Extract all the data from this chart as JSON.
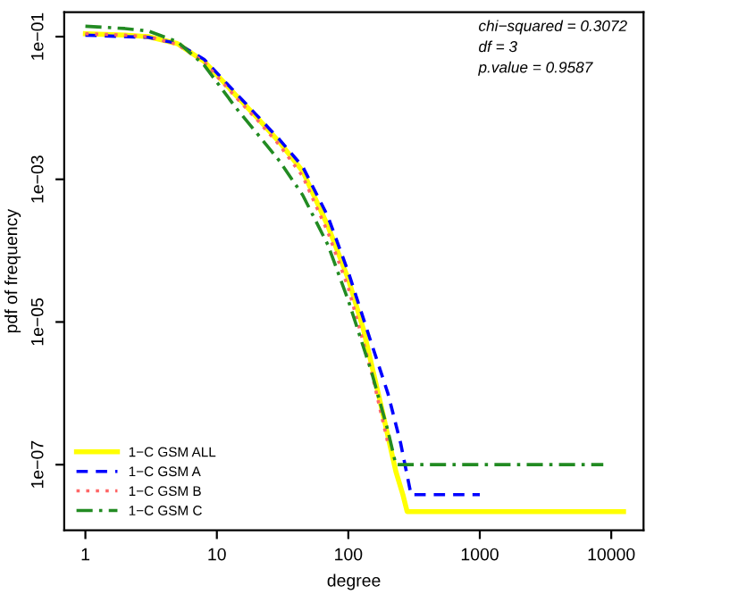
{
  "chart_data": {
    "type": "line",
    "xlabel": "degree",
    "ylabel": "pdf of frequency",
    "log": "xy",
    "xlim": [
      0.69,
      17600
    ],
    "ylim": [
      1.2e-08,
      0.22
    ],
    "xticks": [
      1,
      10,
      100,
      1000,
      10000
    ],
    "yticks": [
      {
        "value": 1e-07,
        "label": "1e−07"
      },
      {
        "value": 1e-05,
        "label": "1e−05"
      },
      {
        "value": 0.001,
        "label": "1e−03"
      },
      {
        "value": 0.1,
        "label": "1e−01"
      }
    ],
    "grid": false,
    "legend": "bottom left",
    "marker": "none",
    "annotations": [
      "chi−squared = 0.3072",
      "df = 3",
      "p.value = 0.9587"
    ],
    "series": [
      {
        "name": "1−C GSM ALL",
        "color": "#ffff00",
        "line_style": "solid",
        "x": [
          1,
          2,
          3,
          5,
          8,
          14,
          20,
          30,
          45,
          70,
          100,
          130,
          180,
          230,
          260,
          280,
          300,
          12400
        ],
        "values": [
          0.11,
          0.105,
          0.1,
          0.08,
          0.045,
          0.015,
          0.0075,
          0.0033,
          0.0013,
          0.00022,
          4e-05,
          8e-06,
          6e-07,
          8e-08,
          3.8e-08,
          2.2e-08,
          2.2e-08,
          2.2e-08
        ]
      },
      {
        "name": "1−C GSM A",
        "color": "#0000ff",
        "line_style": "dashed",
        "x": [
          1,
          2,
          3,
          5,
          8,
          14,
          20,
          30,
          45,
          70,
          100,
          150,
          200,
          250,
          300,
          1000
        ],
        "values": [
          0.105,
          0.1,
          0.098,
          0.08,
          0.048,
          0.016,
          0.008,
          0.0036,
          0.0015,
          0.0003,
          5e-05,
          5e-06,
          1e-06,
          2e-07,
          3.8e-08,
          3.8e-08
        ]
      },
      {
        "name": "1−C GSM B",
        "color": "#ff6666",
        "line_style": "dotted",
        "x": [
          1,
          2,
          3,
          5,
          8,
          14,
          20,
          30,
          45,
          70,
          100,
          150,
          200
        ],
        "values": [
          0.11,
          0.105,
          0.1,
          0.078,
          0.044,
          0.014,
          0.007,
          0.003,
          0.0011,
          0.00018,
          3e-05,
          2e-06,
          2e-07
        ]
      },
      {
        "name": "1−C GSM C",
        "color": "#228b22",
        "line_style": "dashdot",
        "x": [
          1,
          2,
          3,
          5,
          8,
          14,
          20,
          30,
          45,
          70,
          100,
          150,
          200,
          230,
          8700
        ],
        "values": [
          0.14,
          0.13,
          0.12,
          0.085,
          0.04,
          0.01,
          0.0045,
          0.0018,
          0.0006,
          0.00012,
          2e-05,
          2e-06,
          3e-07,
          1e-07,
          1e-07
        ]
      }
    ]
  }
}
